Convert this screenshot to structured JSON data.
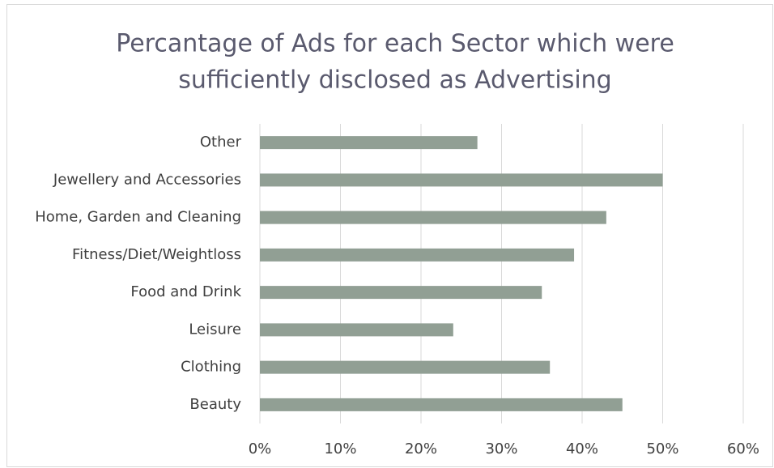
{
  "chart_data": {
    "type": "bar",
    "orientation": "horizontal",
    "title": [
      "Percantage of Ads for each Sector which were",
      "sufficiently disclosed as Advertising"
    ],
    "categories": [
      "Other",
      "Jewellery and Accessories",
      "Home, Garden and Cleaning",
      "Fitness/Diet/Weightloss",
      "Food and Drink",
      "Leisure",
      "Clothing",
      "Beauty"
    ],
    "values": [
      27,
      50,
      43,
      39,
      35,
      24,
      36,
      45
    ],
    "color": "#919f94",
    "xlim": [
      0,
      60
    ],
    "xticks": [
      {
        "value": 0,
        "label": "0%"
      },
      {
        "value": 10,
        "label": "10%"
      },
      {
        "value": 20,
        "label": "20%"
      },
      {
        "value": 30,
        "label": "30%"
      },
      {
        "value": 40,
        "label": "40%"
      },
      {
        "value": 50,
        "label": "50%"
      },
      {
        "value": 60,
        "label": "60%"
      }
    ],
    "grid": true
  }
}
